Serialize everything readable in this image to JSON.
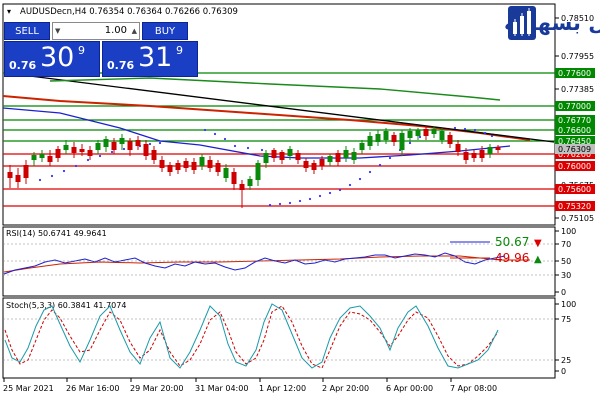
{
  "header": {
    "symbol_info": "AUDUSDecn,H4  0.76354 0.76364 0.76266 0.76309",
    "logo_text": "التداول بسهولة",
    "logo_alt": "candles"
  },
  "trade_panel": {
    "sell_label": "SELL",
    "buy_label": "BUY",
    "lot": "1.00",
    "sell_small": "0.76",
    "sell_big": "30",
    "sell_pip": "9",
    "buy_small": "0.76",
    "buy_big": "31",
    "buy_pip": "9"
  },
  "price_axis": {
    "ticks": [
      "0.78510",
      "0.77955",
      "0.77385",
      "0.76815",
      "0.76245",
      "0.75675",
      "0.75105"
    ],
    "level_labels": [
      "0.77600",
      "0.77000",
      "0.76770",
      "0.76600",
      "0.76450",
      "0.76200",
      "0.76000",
      "0.75600",
      "0.75320"
    ],
    "current_price_label": "0.76309"
  },
  "rsi": {
    "title": "RSI(14) 50.6741 49.9641",
    "value_main": "50.67",
    "value_signal": "49.96",
    "ticks": [
      "100",
      "70",
      "50",
      "30",
      "0"
    ]
  },
  "stoch": {
    "title": "Stoch(5,3,3) 60.3841 41.7074",
    "ticks": [
      "100",
      "75",
      "25",
      "0"
    ]
  },
  "time_axis": [
    "25 Mar 2021",
    "26 Mar 16:00",
    "29 Mar 20:00",
    "31 Mar 04:00",
    "1 Apr 12:00",
    "2 Apr 20:00",
    "6 Apr 00:00",
    "7 Apr 08:00"
  ],
  "colors": {
    "up_candle": "#0a8a0a",
    "down_candle": "#cc0000",
    "resistance": "#008800",
    "support": "#dd0000",
    "ma_fast": "#1c20d0",
    "ma_slow": "#cc2200",
    "trend": "#000000",
    "psar": "#3333ff",
    "logo_red": "#e0201a",
    "logo_blue": "#1a3a9a"
  }
}
